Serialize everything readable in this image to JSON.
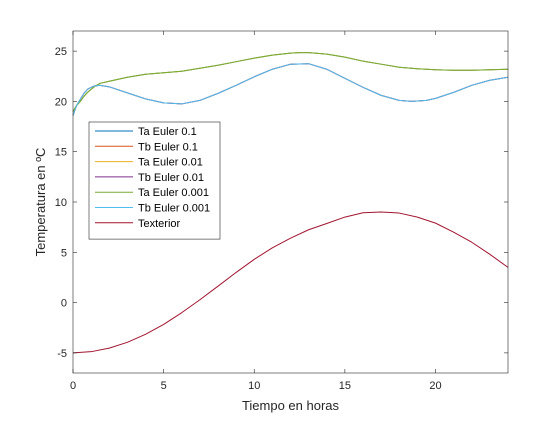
{
  "chart_data": {
    "type": "line",
    "title": "",
    "xlabel": "Tiempo en horas",
    "ylabel": "Temperatura en ºC",
    "xlim": [
      0,
      24
    ],
    "ylim": [
      -7,
      27
    ],
    "xticks": [
      0,
      5,
      10,
      15,
      20
    ],
    "yticks": [
      -5,
      0,
      5,
      10,
      15,
      20,
      25
    ],
    "xtick_labels": [
      "0",
      "5",
      "10",
      "15",
      "20"
    ],
    "ytick_labels": [
      "-5",
      "0",
      "5",
      "10",
      "15",
      "20",
      "25"
    ],
    "grid": false,
    "legend_position": "upper-left",
    "series": [
      {
        "name": "Ta Euler 0.1",
        "color": "#0072BD",
        "x": [
          0,
          0.2,
          0.4,
          0.6,
          0.8,
          1.0,
          1.2,
          1.5,
          2.0,
          2.5,
          3,
          4,
          5,
          6,
          7,
          8,
          9,
          10,
          11,
          12,
          12.5,
          13,
          14,
          15,
          16,
          17,
          18,
          19,
          20,
          21,
          22,
          23,
          24
        ],
        "y": [
          19.0,
          19.6,
          20.0,
          20.5,
          20.9,
          21.2,
          21.5,
          21.8,
          22.0,
          22.2,
          22.4,
          22.7,
          22.85,
          23.0,
          23.3,
          23.6,
          23.95,
          24.3,
          24.6,
          24.8,
          24.85,
          24.85,
          24.7,
          24.4,
          24.0,
          23.7,
          23.4,
          23.25,
          23.15,
          23.1,
          23.1,
          23.15,
          23.2
        ]
      },
      {
        "name": "Tb Euler 0.1",
        "color": "#D95319",
        "x": [
          0,
          0.2,
          0.4,
          0.6,
          0.8,
          1.0,
          1.2,
          1.5,
          2,
          3,
          4,
          5,
          6,
          7,
          8,
          9,
          10,
          11,
          12,
          13,
          14,
          15,
          16,
          17,
          18,
          18.7,
          19.5,
          20,
          21,
          22,
          23,
          24
        ],
        "y": [
          18.6,
          19.6,
          20.2,
          20.8,
          21.2,
          21.4,
          21.55,
          21.6,
          21.45,
          20.85,
          20.25,
          19.85,
          19.75,
          20.1,
          20.8,
          21.6,
          22.45,
          23.2,
          23.7,
          23.75,
          23.2,
          22.3,
          21.4,
          20.6,
          20.1,
          20.0,
          20.1,
          20.3,
          20.9,
          21.6,
          22.1,
          22.4
        ]
      },
      {
        "name": "Ta Euler 0.01",
        "color": "#EDB120",
        "x": [
          0,
          0.2,
          0.4,
          0.6,
          0.8,
          1.0,
          1.2,
          1.5,
          2.0,
          2.5,
          3,
          4,
          5,
          6,
          7,
          8,
          9,
          10,
          11,
          12,
          12.5,
          13,
          14,
          15,
          16,
          17,
          18,
          19,
          20,
          21,
          22,
          23,
          24
        ],
        "y": [
          19.0,
          19.6,
          20.0,
          20.5,
          20.9,
          21.2,
          21.5,
          21.8,
          22.0,
          22.2,
          22.4,
          22.7,
          22.85,
          23.0,
          23.3,
          23.6,
          23.95,
          24.3,
          24.6,
          24.8,
          24.85,
          24.85,
          24.7,
          24.4,
          24.0,
          23.7,
          23.4,
          23.25,
          23.15,
          23.1,
          23.1,
          23.15,
          23.2
        ]
      },
      {
        "name": "Tb Euler 0.01",
        "color": "#7E2F8E",
        "x": [
          0,
          0.2,
          0.4,
          0.6,
          0.8,
          1.0,
          1.2,
          1.5,
          2,
          3,
          4,
          5,
          6,
          7,
          8,
          9,
          10,
          11,
          12,
          13,
          14,
          15,
          16,
          17,
          18,
          18.7,
          19.5,
          20,
          21,
          22,
          23,
          24
        ],
        "y": [
          18.6,
          19.6,
          20.2,
          20.8,
          21.2,
          21.4,
          21.55,
          21.6,
          21.45,
          20.85,
          20.25,
          19.85,
          19.75,
          20.1,
          20.8,
          21.6,
          22.45,
          23.2,
          23.7,
          23.75,
          23.2,
          22.3,
          21.4,
          20.6,
          20.1,
          20.0,
          20.1,
          20.3,
          20.9,
          21.6,
          22.1,
          22.4
        ]
      },
      {
        "name": "Ta Euler 0.001",
        "color": "#77AC30",
        "x": [
          0,
          0.2,
          0.4,
          0.6,
          0.8,
          1.0,
          1.2,
          1.5,
          2.0,
          2.5,
          3,
          4,
          5,
          6,
          7,
          8,
          9,
          10,
          11,
          12,
          12.5,
          13,
          14,
          15,
          16,
          17,
          18,
          19,
          20,
          21,
          22,
          23,
          24
        ],
        "y": [
          19.0,
          19.6,
          20.0,
          20.5,
          20.9,
          21.2,
          21.5,
          21.8,
          22.0,
          22.2,
          22.4,
          22.7,
          22.85,
          23.0,
          23.3,
          23.6,
          23.95,
          24.3,
          24.6,
          24.8,
          24.85,
          24.85,
          24.7,
          24.4,
          24.0,
          23.7,
          23.4,
          23.25,
          23.15,
          23.1,
          23.1,
          23.15,
          23.2
        ]
      },
      {
        "name": "Tb Euler 0.001",
        "color": "#4DBEEE",
        "x": [
          0,
          0.2,
          0.4,
          0.6,
          0.8,
          1.0,
          1.2,
          1.5,
          2,
          3,
          4,
          5,
          6,
          7,
          8,
          9,
          10,
          11,
          12,
          13,
          14,
          15,
          16,
          17,
          18,
          18.7,
          19.5,
          20,
          21,
          22,
          23,
          24
        ],
        "y": [
          18.6,
          19.6,
          20.2,
          20.8,
          21.2,
          21.4,
          21.55,
          21.6,
          21.45,
          20.85,
          20.25,
          19.85,
          19.75,
          20.1,
          20.8,
          21.6,
          22.45,
          23.2,
          23.7,
          23.75,
          23.2,
          22.3,
          21.4,
          20.6,
          20.1,
          20.0,
          20.1,
          20.3,
          20.9,
          21.6,
          22.1,
          22.4
        ]
      },
      {
        "name": "Texterior",
        "color": "#A2142F",
        "x": [
          0,
          1,
          2,
          3,
          4,
          5,
          6,
          7,
          8,
          9,
          10,
          11,
          12,
          13,
          14,
          15,
          16,
          17,
          18,
          19,
          20,
          21,
          22,
          23,
          24
        ],
        "y": [
          -5.0,
          -4.88,
          -4.53,
          -3.95,
          -3.15,
          -2.17,
          -1.0,
          0.28,
          1.63,
          3.0,
          4.3,
          5.45,
          6.4,
          7.24,
          7.86,
          8.5,
          8.93,
          9.0,
          8.9,
          8.5,
          7.9,
          7.0,
          6.0,
          4.8,
          3.5
        ]
      }
    ]
  }
}
